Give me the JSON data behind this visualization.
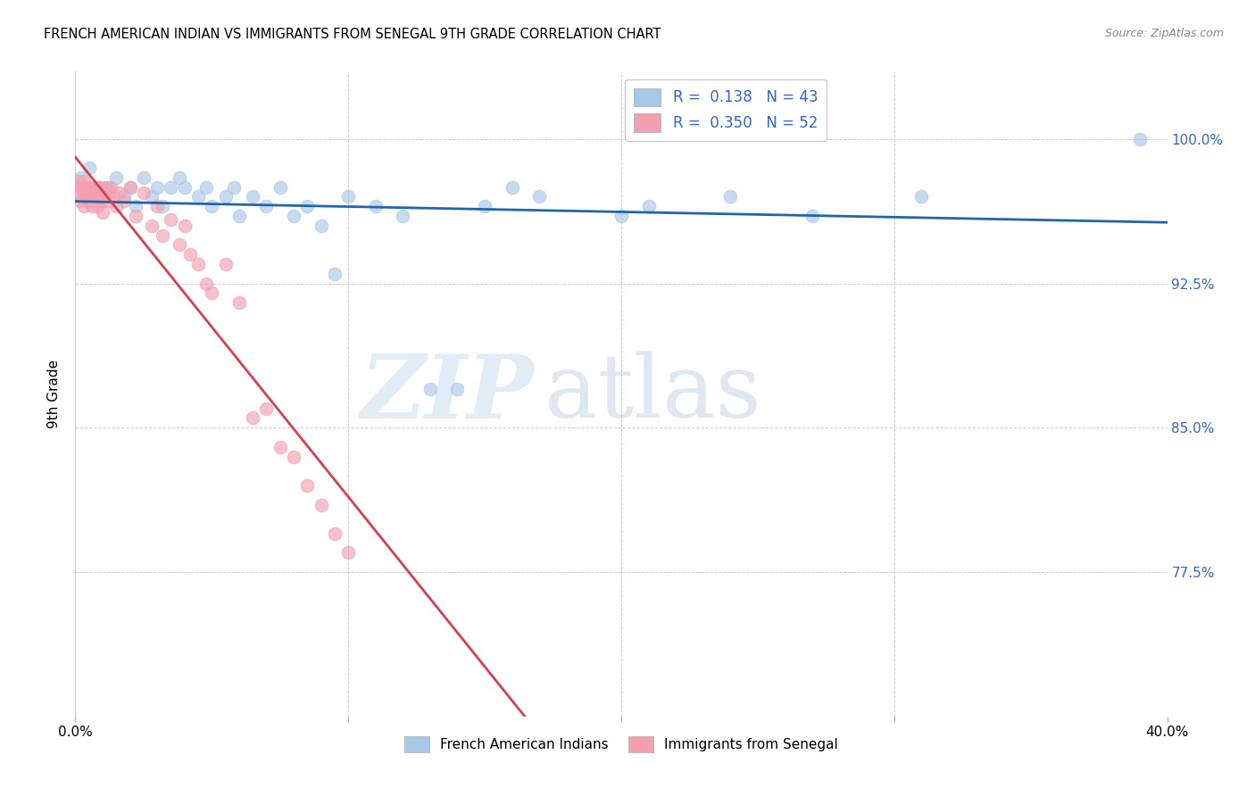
{
  "title": "FRENCH AMERICAN INDIAN VS IMMIGRANTS FROM SENEGAL 9TH GRADE CORRELATION CHART",
  "source": "Source: ZipAtlas.com",
  "ylabel": "9th Grade",
  "ytick_labels": [
    "100.0%",
    "92.5%",
    "85.0%",
    "77.5%"
  ],
  "ytick_values": [
    1.0,
    0.925,
    0.85,
    0.775
  ],
  "xlim": [
    0.0,
    0.4
  ],
  "ylim": [
    0.7,
    1.035
  ],
  "blue_color": "#a8c8e8",
  "pink_color": "#f4a0b0",
  "blue_line_color": "#2166ac",
  "pink_line_color": "#d6404a",
  "watermark_zip": "ZIP",
  "watermark_atlas": "atlas",
  "blue_scatter_x": [
    0.002,
    0.005,
    0.008,
    0.01,
    0.012,
    0.015,
    0.018,
    0.02,
    0.022,
    0.025,
    0.028,
    0.03,
    0.032,
    0.035,
    0.038,
    0.04,
    0.045,
    0.048,
    0.05,
    0.055,
    0.058,
    0.06,
    0.065,
    0.07,
    0.075,
    0.08,
    0.085,
    0.09,
    0.095,
    0.1,
    0.11,
    0.12,
    0.13,
    0.14,
    0.15,
    0.16,
    0.17,
    0.2,
    0.21,
    0.24,
    0.27,
    0.31,
    0.39
  ],
  "blue_scatter_y": [
    0.98,
    0.985,
    0.975,
    0.97,
    0.975,
    0.98,
    0.97,
    0.975,
    0.965,
    0.98,
    0.97,
    0.975,
    0.965,
    0.975,
    0.98,
    0.975,
    0.97,
    0.975,
    0.965,
    0.97,
    0.975,
    0.96,
    0.97,
    0.965,
    0.975,
    0.96,
    0.965,
    0.955,
    0.93,
    0.97,
    0.965,
    0.96,
    0.87,
    0.87,
    0.965,
    0.975,
    0.97,
    0.96,
    0.965,
    0.97,
    0.96,
    0.97,
    1.0
  ],
  "pink_scatter_x": [
    0.001,
    0.001,
    0.002,
    0.002,
    0.003,
    0.003,
    0.003,
    0.004,
    0.004,
    0.005,
    0.005,
    0.005,
    0.006,
    0.006,
    0.007,
    0.007,
    0.008,
    0.008,
    0.009,
    0.009,
    0.01,
    0.01,
    0.011,
    0.012,
    0.013,
    0.014,
    0.015,
    0.016,
    0.018,
    0.02,
    0.022,
    0.025,
    0.028,
    0.03,
    0.032,
    0.035,
    0.038,
    0.04,
    0.042,
    0.045,
    0.048,
    0.05,
    0.055,
    0.06,
    0.065,
    0.07,
    0.075,
    0.08,
    0.085,
    0.09,
    0.095,
    0.1
  ],
  "pink_scatter_y": [
    0.978,
    0.972,
    0.975,
    0.968,
    0.972,
    0.965,
    0.978,
    0.97,
    0.975,
    0.972,
    0.968,
    0.975,
    0.97,
    0.965,
    0.975,
    0.968,
    0.972,
    0.965,
    0.97,
    0.975,
    0.968,
    0.962,
    0.975,
    0.968,
    0.975,
    0.97,
    0.965,
    0.972,
    0.968,
    0.975,
    0.96,
    0.972,
    0.955,
    0.965,
    0.95,
    0.958,
    0.945,
    0.955,
    0.94,
    0.935,
    0.925,
    0.92,
    0.935,
    0.915,
    0.855,
    0.86,
    0.84,
    0.835,
    0.82,
    0.81,
    0.795,
    0.785
  ],
  "legend_blue_r": "R = ",
  "legend_blue_r_val": "0.138",
  "legend_blue_n": "N = ",
  "legend_blue_n_val": "43",
  "legend_pink_r": "R = ",
  "legend_pink_r_val": "0.350",
  "legend_pink_n": "N = ",
  "legend_pink_n_val": "52"
}
